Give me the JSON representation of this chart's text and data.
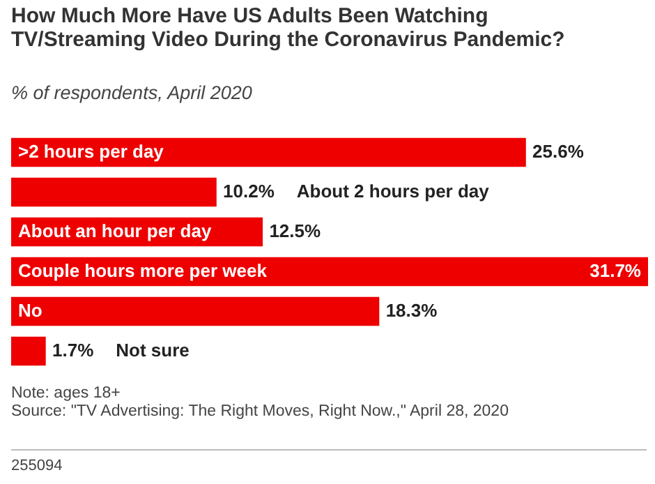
{
  "chart_data": {
    "type": "bar",
    "orientation": "horizontal",
    "title": "How Much More Have US Adults Been Watching TV/Streaming Video During the Coronavirus Pandemic?",
    "subtitle": "% of respondents, April 2020",
    "categories": [
      ">2 hours per day",
      "About 2 hours per day",
      "About an hour per day",
      "Couple hours more per week",
      "No",
      "Not sure"
    ],
    "values": [
      25.6,
      10.2,
      12.5,
      31.7,
      18.3,
      1.7
    ],
    "value_labels": [
      "25.6%",
      "10.2%",
      "12.5%",
      "31.7%",
      "18.3%",
      "1.7%"
    ],
    "color": "#ee0000",
    "legend": false,
    "annotations": [
      "Note: ages 18+",
      "Source: \"TV Advertising: The Right Moves, Right Now.,\" April 28, 2020",
      "255094"
    ]
  }
}
